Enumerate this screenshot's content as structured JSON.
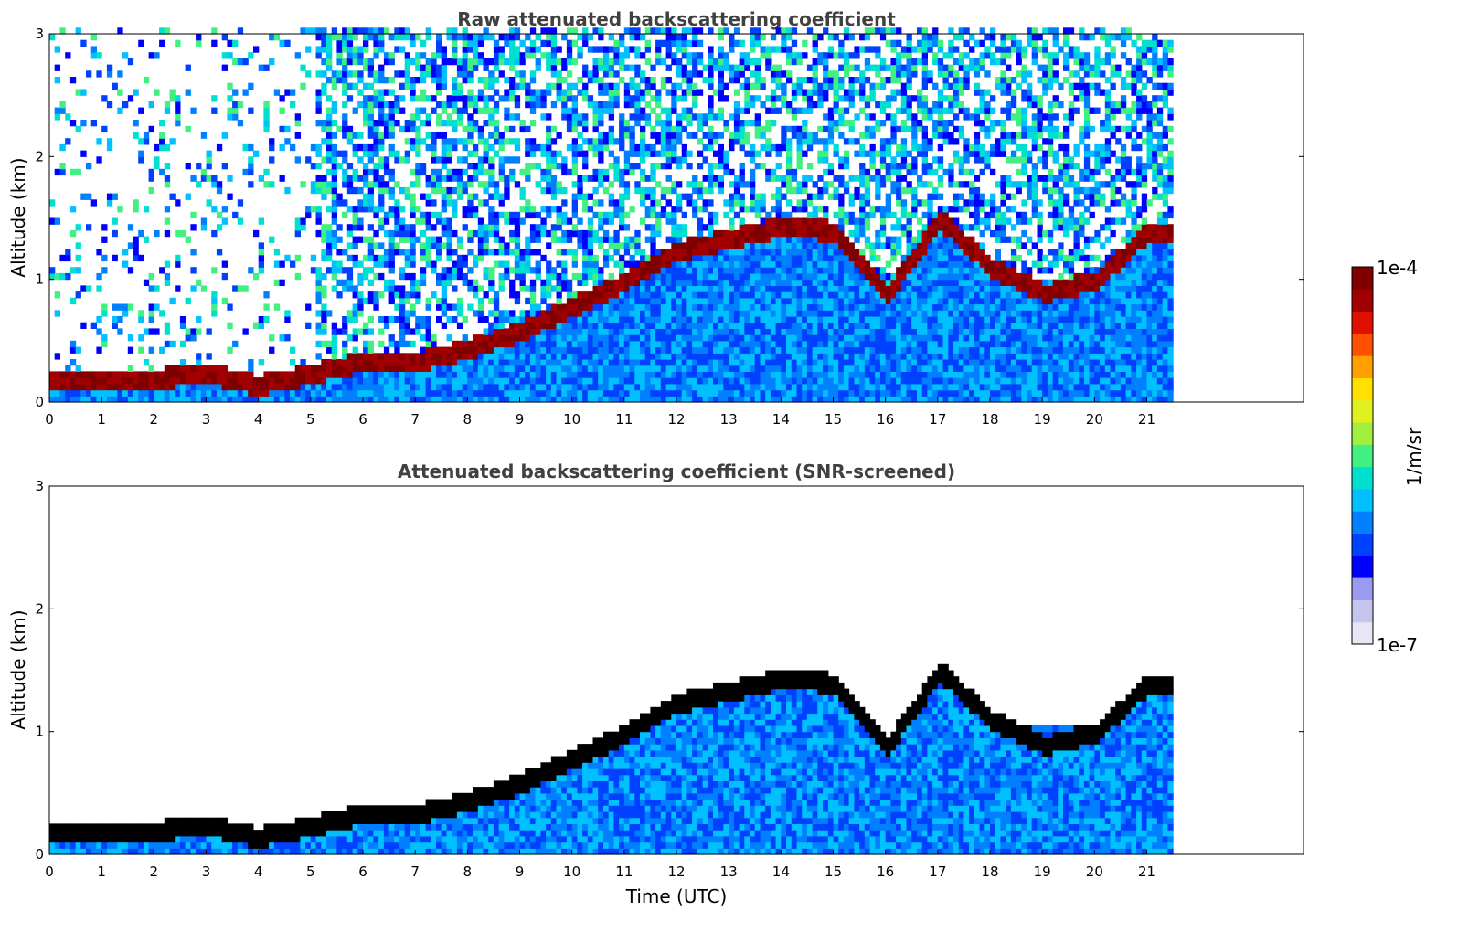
{
  "colors": {
    "palette": [
      "#e6e6f5",
      "#c4c4ee",
      "#9a9af0",
      "#0000ff",
      "#0040ff",
      "#0080ff",
      "#00c0ff",
      "#00e0d0",
      "#40f080",
      "#a0f040",
      "#e0f020",
      "#ffe000",
      "#ffa000",
      "#ff5000",
      "#e01000",
      "#a00000",
      "#800000"
    ],
    "screened_max": "#000000"
  },
  "colorbar": {
    "label": "1/m/sr",
    "ticks": [
      "1e-7",
      "1e-4"
    ]
  },
  "chart_data": [
    {
      "type": "heatmap",
      "title": "Raw attenuated backscattering coefficient",
      "xlabel": "",
      "ylabel": "Altitude (km)",
      "xlim": [
        0,
        24
      ],
      "ylim": [
        0,
        3
      ],
      "xticks": [
        "0",
        "1",
        "2",
        "3",
        "4",
        "5",
        "6",
        "7",
        "8",
        "9",
        "10",
        "11",
        "12",
        "13",
        "14",
        "15",
        "16",
        "17",
        "18",
        "19",
        "20",
        "21"
      ],
      "yticks": [
        "0",
        "1",
        "2",
        "3"
      ],
      "data_end_time": 21.45,
      "boundary_layer_top_km": [
        [
          0,
          0.2
        ],
        [
          1,
          0.2
        ],
        [
          2,
          0.2
        ],
        [
          3,
          0.25
        ],
        [
          4,
          0.15
        ],
        [
          5,
          0.25
        ],
        [
          6,
          0.35
        ],
        [
          7,
          0.35
        ],
        [
          8,
          0.45
        ],
        [
          9,
          0.6
        ],
        [
          10,
          0.8
        ],
        [
          11,
          1.0
        ],
        [
          12,
          1.25
        ],
        [
          13,
          1.35
        ],
        [
          14,
          1.45
        ],
        [
          15,
          1.4
        ],
        [
          16,
          0.9
        ],
        [
          17,
          1.5
        ],
        [
          18,
          1.1
        ],
        [
          19,
          0.9
        ],
        [
          20,
          1.0
        ],
        [
          21,
          1.4
        ]
      ]
    },
    {
      "type": "heatmap",
      "title": "Attenuated backscattering coefficient (SNR-screened)",
      "xlabel": "Time (UTC)",
      "ylabel": "Altitude (km)",
      "xlim": [
        0,
        24
      ],
      "ylim": [
        0,
        3
      ],
      "xticks": [
        "0",
        "1",
        "2",
        "3",
        "4",
        "5",
        "6",
        "7",
        "8",
        "9",
        "10",
        "11",
        "12",
        "13",
        "14",
        "15",
        "16",
        "17",
        "18",
        "19",
        "20",
        "21"
      ],
      "yticks": [
        "0",
        "1",
        "2",
        "3"
      ],
      "data_end_time": 21.45,
      "boundary_layer_top_km": [
        [
          0,
          0.2
        ],
        [
          1,
          0.2
        ],
        [
          2,
          0.2
        ],
        [
          3,
          0.25
        ],
        [
          4,
          0.15
        ],
        [
          5,
          0.25
        ],
        [
          6,
          0.35
        ],
        [
          7,
          0.35
        ],
        [
          8,
          0.45
        ],
        [
          9,
          0.6
        ],
        [
          10,
          0.8
        ],
        [
          11,
          1.0
        ],
        [
          12,
          1.25
        ],
        [
          13,
          1.35
        ],
        [
          14,
          1.45
        ],
        [
          15,
          1.4
        ],
        [
          16,
          0.9
        ],
        [
          17,
          1.5
        ],
        [
          18,
          1.1
        ],
        [
          19,
          0.9
        ],
        [
          20,
          1.0
        ],
        [
          21,
          1.4
        ]
      ]
    }
  ]
}
